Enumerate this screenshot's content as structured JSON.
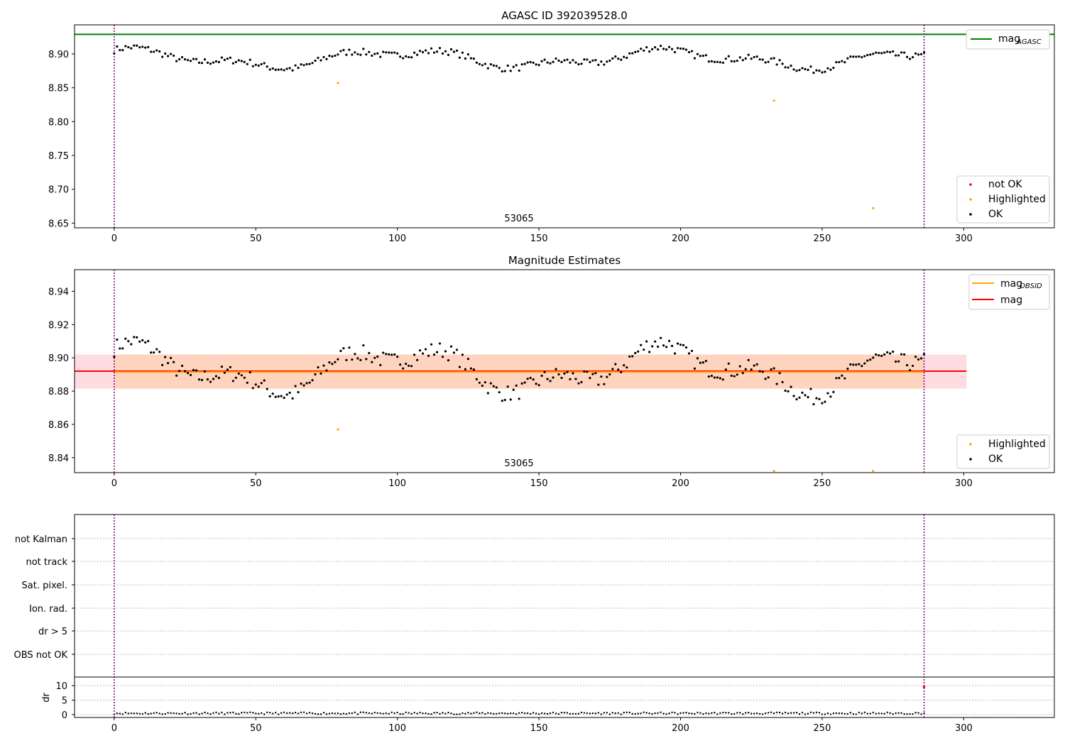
{
  "colors": {
    "ok": "#000000",
    "highlighted": "#ffa500",
    "not_ok": "#ff0000",
    "agasc_line": "#008000",
    "obsid_line": "#ffa500",
    "mag_line": "#ff0000",
    "obs_boundary": "#800080",
    "band_pink": "#ffc0cb",
    "band_orange": "#ffd0b0"
  },
  "chart_data": [
    {
      "type": "scatter",
      "title": "AGASC ID 392039528.0",
      "xlim": [
        -14,
        332
      ],
      "ylim": [
        8.643,
        8.943
      ],
      "x_ticks": [
        0,
        50,
        100,
        150,
        200,
        250,
        300
      ],
      "y_ticks": [
        8.65,
        8.7,
        8.75,
        8.8,
        8.85,
        8.9
      ],
      "obs_boundaries": [
        0,
        286
      ],
      "obs_label": "53065",
      "obs_label_x": 143,
      "mag_agasc": 8.929,
      "ok_wave": {
        "n": 287,
        "base": 8.893,
        "amp1": 0.011,
        "period1": 95,
        "phase1": 1.2,
        "amp2": 0.006,
        "period2": 37,
        "phase2": 0.4,
        "noise": 0.005,
        "seed": 7
      },
      "highlighted": [
        [
          79,
          8.857
        ],
        [
          233,
          8.831
        ],
        [
          268,
          8.672
        ]
      ],
      "legend_top": [
        {
          "label": "mag",
          "subscript": "AGASC"
        }
      ],
      "legend_bottom": [
        "not OK",
        "Highlighted",
        "OK"
      ]
    },
    {
      "type": "scatter",
      "title": "Magnitude Estimates",
      "xlim": [
        -14,
        332
      ],
      "ylim": [
        8.831,
        8.953
      ],
      "x_ticks": [
        0,
        50,
        100,
        150,
        200,
        250,
        300
      ],
      "y_ticks": [
        8.84,
        8.86,
        8.88,
        8.9,
        8.92,
        8.94
      ],
      "obs_boundaries": [
        0,
        286
      ],
      "obs_label": "53065",
      "obs_label_x": 143,
      "mag_obsid": 8.8915,
      "mag": 8.892,
      "band": [
        8.8815,
        8.902
      ],
      "band_x": [
        -14,
        301
      ],
      "highlighted": [
        [
          79,
          8.857
        ],
        [
          233,
          8.832
        ],
        [
          268,
          8.832
        ]
      ],
      "legend_top": [
        {
          "label": "mag",
          "subscript": "OBSID"
        },
        {
          "label": "mag",
          "subscript": ""
        }
      ],
      "legend_bottom": [
        "Highlighted",
        "OK"
      ]
    },
    {
      "type": "scatter",
      "xlim": [
        -14,
        332
      ],
      "x_ticks": [
        0,
        50,
        100,
        150,
        200,
        250,
        300
      ],
      "flag_labels": [
        "not Kalman",
        "not track",
        "Sat. pixel.",
        "Ion. rad.",
        "dr > 5",
        "OBS not OK"
      ],
      "obs_boundaries": [
        0,
        286
      ],
      "dr": {
        "ylabel": "dr",
        "ylim": [
          -1,
          13
        ],
        "y_ticks": [
          0,
          5,
          10
        ],
        "base": 0.45,
        "spread": 0.35,
        "seed": 11,
        "outlier": [
          286,
          9.6
        ]
      }
    }
  ]
}
